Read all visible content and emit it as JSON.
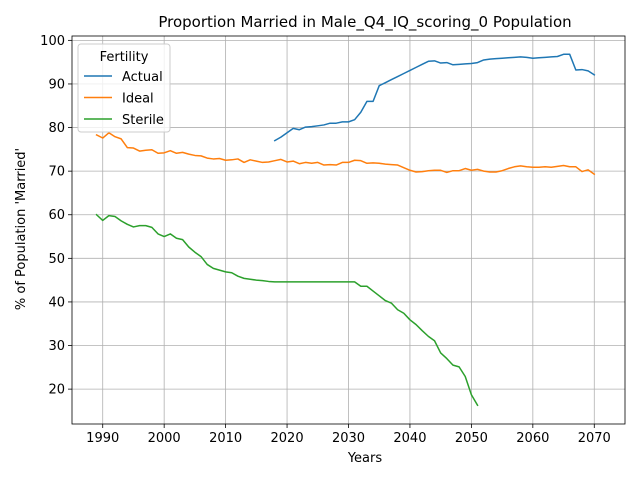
{
  "chart_data": {
    "type": "line",
    "title": "Proportion Married in Male_Q4_IQ_scoring_0 Population",
    "xlabel": "Years",
    "ylabel": "% of Population 'Married'",
    "xlim": [
      1985,
      2075
    ],
    "ylim": [
      12,
      101
    ],
    "xticks": [
      1990,
      2000,
      2010,
      2020,
      2030,
      2040,
      2050,
      2060,
      2070
    ],
    "yticks": [
      20,
      30,
      40,
      50,
      60,
      70,
      80,
      90,
      100
    ],
    "grid": true,
    "legend": {
      "title": "Fertility",
      "placement": "top-left"
    },
    "series": [
      {
        "name": "Actual",
        "color": "#1f77b4",
        "x": [
          2018,
          2019,
          2020,
          2021,
          2022,
          2023,
          2024,
          2025,
          2026,
          2027,
          2028,
          2029,
          2030,
          2031,
          2032,
          2033,
          2034,
          2035,
          2036,
          2037,
          2038,
          2039,
          2040,
          2041,
          2042,
          2043,
          2044,
          2045,
          2046,
          2047,
          2048,
          2049,
          2050,
          2051,
          2052,
          2053,
          2054,
          2055,
          2056,
          2057,
          2058,
          2059,
          2060,
          2061,
          2062,
          2063,
          2064,
          2065,
          2066,
          2067,
          2068,
          2069,
          2070
        ],
        "y": [
          77.0,
          77.8,
          78.8,
          79.8,
          79.5,
          80.1,
          80.2,
          80.4,
          80.6,
          81.0,
          81.0,
          81.3,
          81.3,
          81.8,
          83.5,
          86.0,
          86.0,
          89.6,
          90.3,
          91.0,
          91.7,
          92.4,
          93.1,
          93.8,
          94.5,
          95.2,
          95.3,
          94.8,
          94.9,
          94.4,
          94.5,
          94.6,
          94.7,
          94.9,
          95.5,
          95.7,
          95.8,
          95.9,
          96.0,
          96.1,
          96.2,
          96.1,
          95.9,
          96.0,
          96.1,
          96.2,
          96.3,
          96.8,
          96.8,
          93.2,
          93.3,
          93.0,
          92.1
        ]
      },
      {
        "name": "Ideal",
        "color": "#ff7f0e",
        "x": [
          1989,
          1990,
          1991,
          1992,
          1993,
          1994,
          1995,
          1996,
          1997,
          1998,
          1999,
          2000,
          2001,
          2002,
          2003,
          2004,
          2005,
          2006,
          2007,
          2008,
          2009,
          2010,
          2011,
          2012,
          2013,
          2014,
          2015,
          2016,
          2017,
          2018,
          2019,
          2020,
          2021,
          2022,
          2023,
          2024,
          2025,
          2026,
          2027,
          2028,
          2029,
          2030,
          2031,
          2032,
          2033,
          2034,
          2035,
          2036,
          2037,
          2038,
          2039,
          2040,
          2041,
          2042,
          2043,
          2044,
          2045,
          2046,
          2047,
          2048,
          2049,
          2050,
          2051,
          2052,
          2053,
          2054,
          2055,
          2056,
          2057,
          2058,
          2059,
          2060,
          2061,
          2062,
          2063,
          2064,
          2065,
          2066,
          2067,
          2068,
          2069,
          2070
        ],
        "y": [
          78.3,
          77.6,
          78.8,
          77.9,
          77.4,
          75.4,
          75.3,
          74.6,
          74.8,
          74.9,
          74.1,
          74.2,
          74.7,
          74.1,
          74.3,
          73.9,
          73.6,
          73.5,
          73.0,
          72.8,
          72.9,
          72.5,
          72.6,
          72.8,
          72.0,
          72.6,
          72.3,
          72.0,
          72.1,
          72.4,
          72.7,
          72.1,
          72.3,
          71.7,
          72.0,
          71.8,
          72.0,
          71.4,
          71.5,
          71.4,
          72.0,
          72.0,
          72.5,
          72.4,
          71.8,
          71.9,
          71.8,
          71.6,
          71.5,
          71.4,
          70.8,
          70.2,
          69.8,
          69.9,
          70.1,
          70.2,
          70.2,
          69.7,
          70.1,
          70.1,
          70.6,
          70.2,
          70.4,
          70.0,
          69.8,
          69.8,
          70.1,
          70.6,
          71.0,
          71.2,
          71.0,
          70.9,
          70.9,
          71.0,
          70.9,
          71.1,
          71.3,
          71.0,
          71.0,
          69.9,
          70.3,
          69.3
        ]
      },
      {
        "name": "Sterile",
        "color": "#2ca02c",
        "x": [
          1989,
          1990,
          1991,
          1992,
          1993,
          1994,
          1995,
          1996,
          1997,
          1998,
          1999,
          2000,
          2001,
          2002,
          2003,
          2004,
          2005,
          2006,
          2007,
          2008,
          2009,
          2010,
          2011,
          2012,
          2013,
          2014,
          2015,
          2016,
          2017,
          2018,
          2019,
          2020,
          2021,
          2022,
          2023,
          2024,
          2025,
          2026,
          2027,
          2028,
          2029,
          2030,
          2031,
          2032,
          2033,
          2034,
          2035,
          2036,
          2037,
          2038,
          2039,
          2040,
          2041,
          2042,
          2043,
          2044,
          2045,
          2046,
          2047,
          2048,
          2049,
          2050,
          2051
        ],
        "y": [
          60.0,
          58.7,
          59.8,
          59.6,
          58.6,
          57.8,
          57.2,
          57.5,
          57.5,
          57.1,
          55.6,
          55.0,
          55.6,
          54.6,
          54.3,
          52.6,
          51.4,
          50.4,
          48.6,
          47.7,
          47.3,
          46.9,
          46.7,
          45.9,
          45.4,
          45.2,
          45.0,
          44.9,
          44.7,
          44.6,
          44.6,
          44.6,
          44.6,
          44.6,
          44.6,
          44.6,
          44.6,
          44.6,
          44.6,
          44.6,
          44.6,
          44.6,
          44.6,
          43.6,
          43.6,
          42.5,
          41.4,
          40.3,
          39.7,
          38.2,
          37.4,
          35.9,
          34.8,
          33.4,
          32.1,
          31.1,
          28.3,
          27.0,
          25.5,
          25.1,
          22.9,
          18.7,
          16.3
        ]
      }
    ]
  }
}
